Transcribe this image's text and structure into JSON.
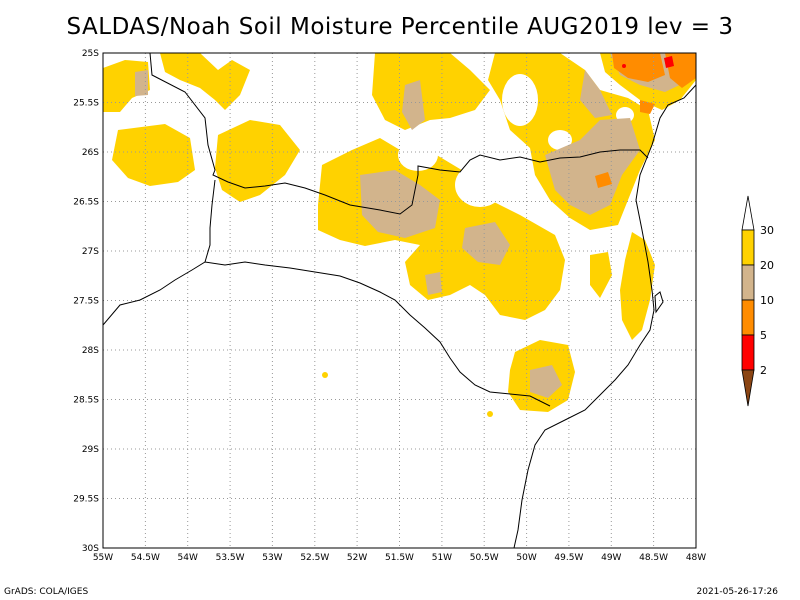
{
  "title": "SALDAS/Noah Soil Moisture Percentile AUG2019 lev = 3",
  "footer": {
    "left": "GrADS: COLA/IGES",
    "right": "2021-05-26-17:26"
  },
  "axes": {
    "x_ticks": [
      "55W",
      "54.5W",
      "54W",
      "53.5W",
      "53W",
      "52.5W",
      "52W",
      "51.5W",
      "51W",
      "50.5W",
      "50W",
      "49.5W",
      "49W",
      "48.5W",
      "48W"
    ],
    "y_ticks": [
      "25S",
      "25.5S",
      "26S",
      "26.5S",
      "27S",
      "27.5S",
      "28S",
      "28.5S",
      "29S",
      "29.5S",
      "30S"
    ]
  },
  "legend": {
    "levels": [
      "30",
      "20",
      "10",
      "5",
      "2"
    ],
    "colors": {
      "above30": "#ffffff",
      "20-30": "#ffd200",
      "10-20": "#d2b48c",
      "5-10": "#ff8c00",
      "2-5": "#ff0000",
      "below2": "#8b4513"
    }
  }
}
